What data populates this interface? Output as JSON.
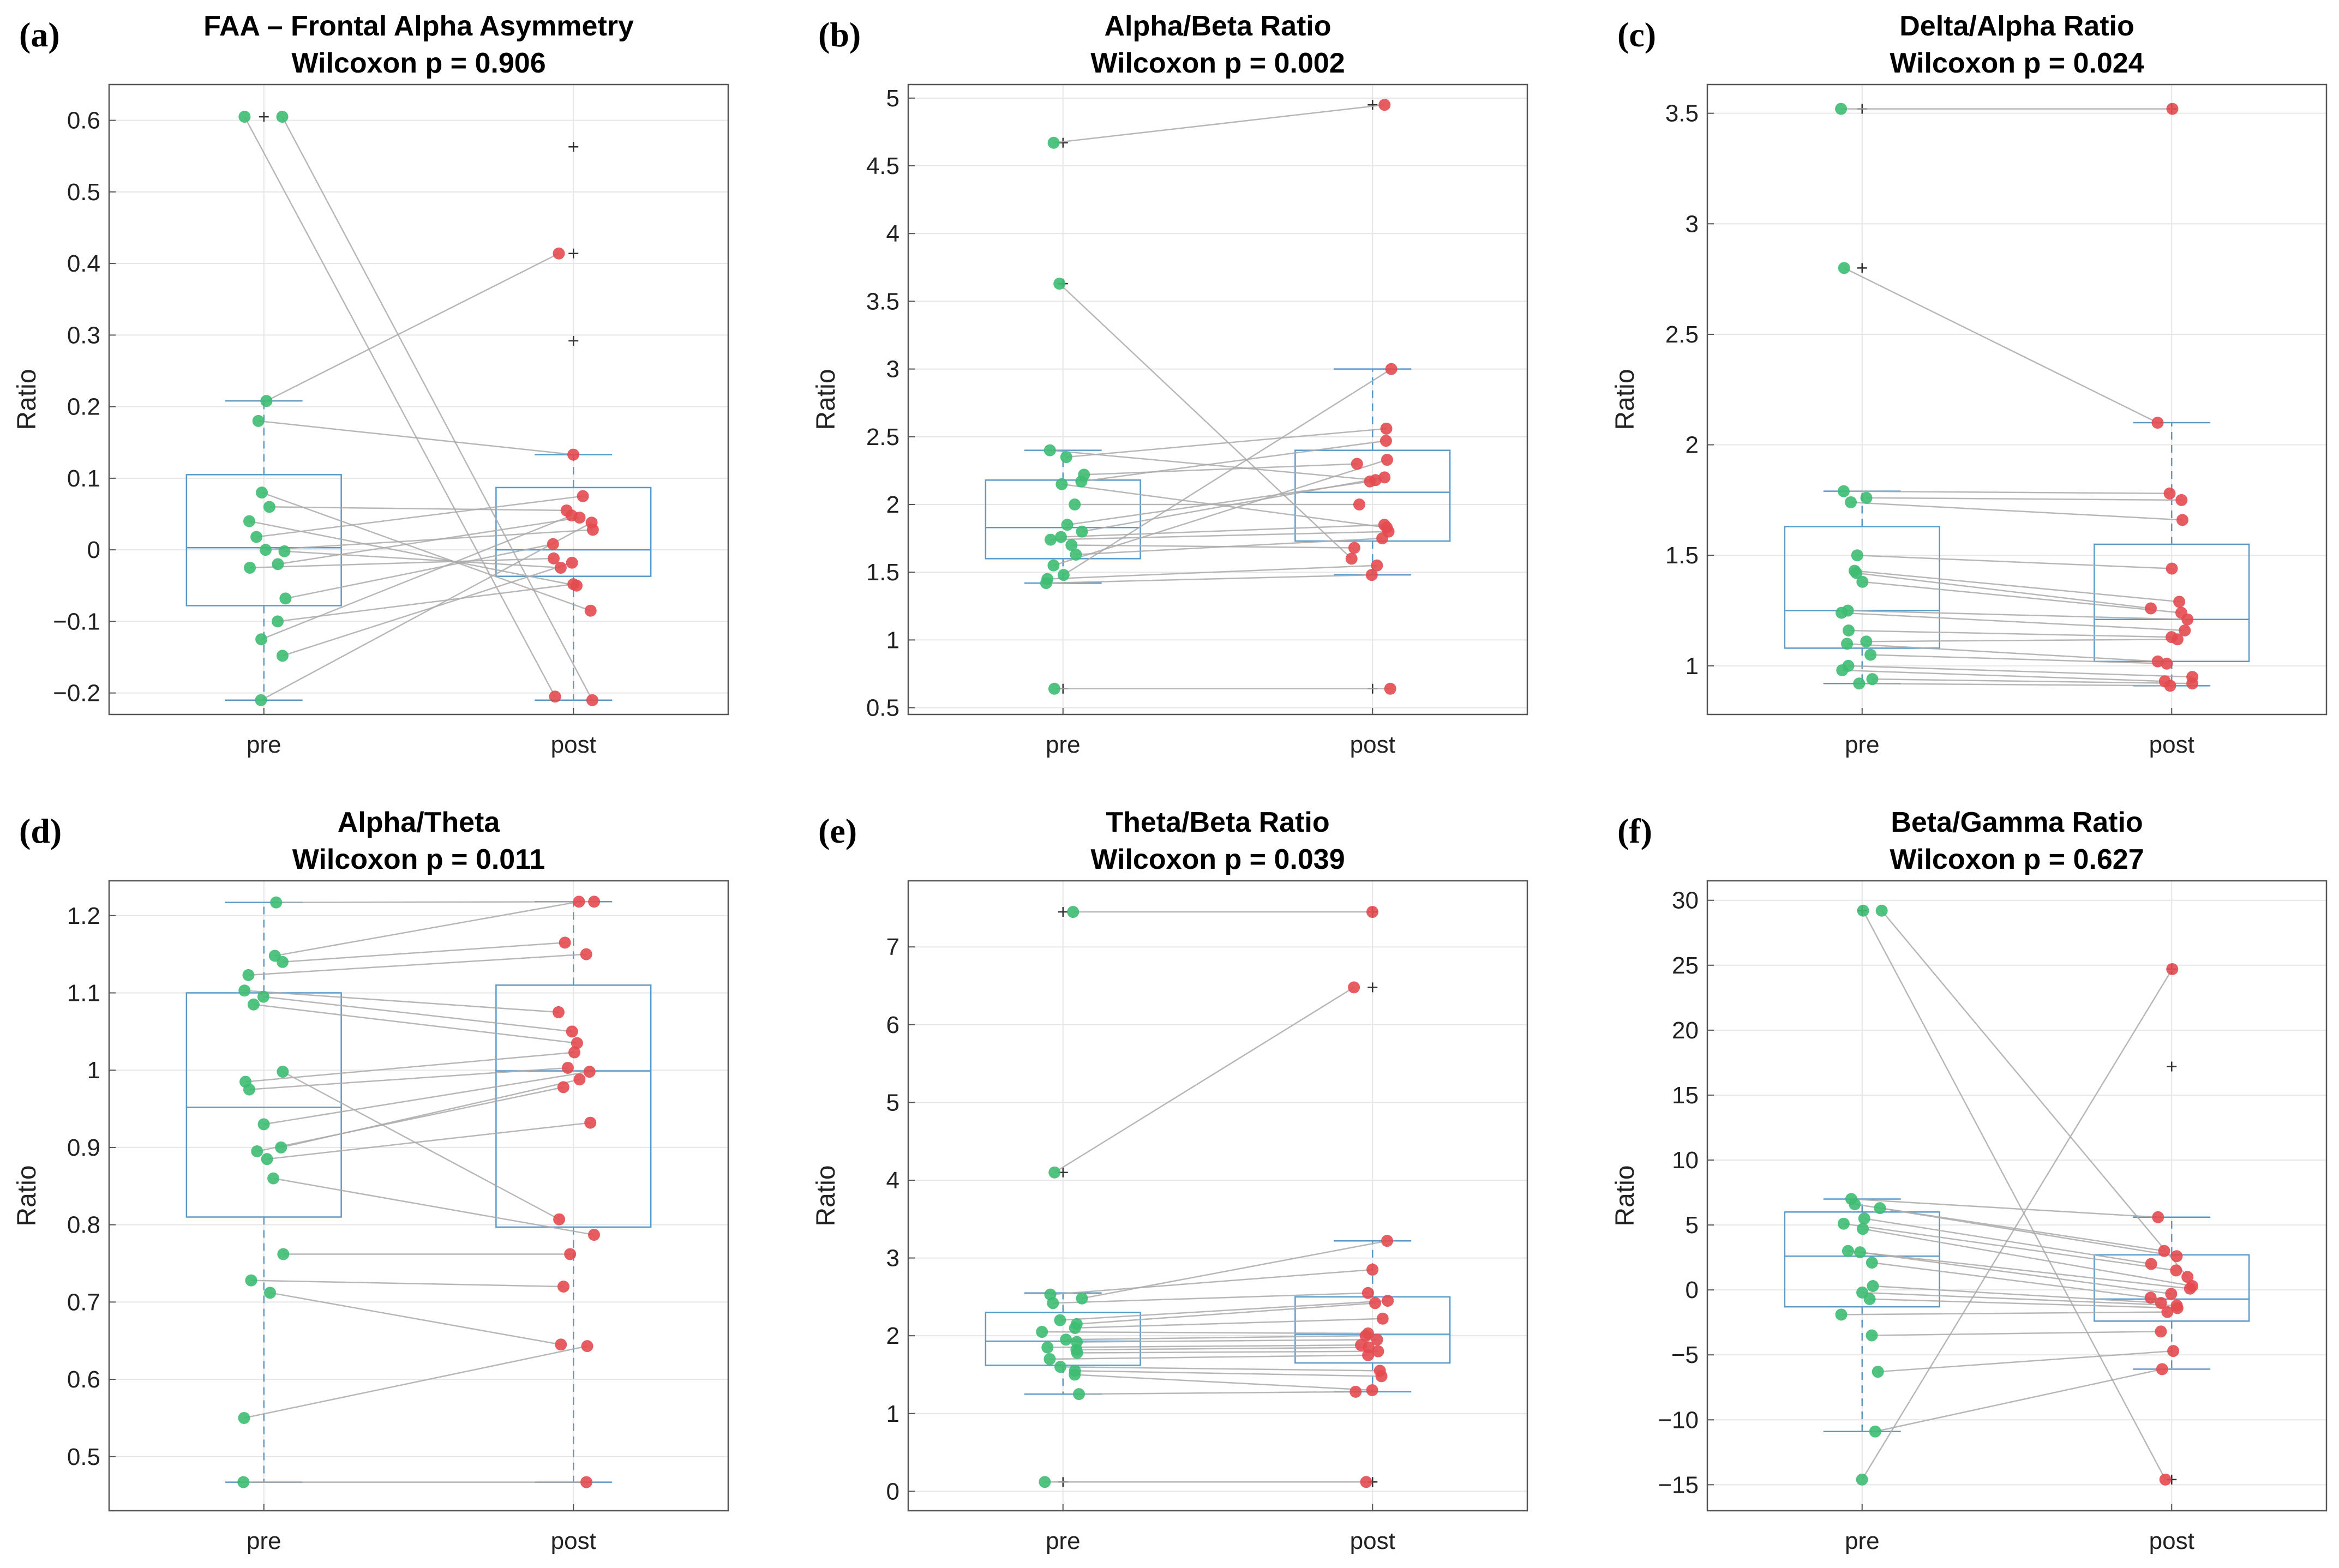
{
  "colors": {
    "pre": "#3dbd72",
    "post": "#e34a4f",
    "box": "#5a9ac9",
    "link": "#aaaaaa",
    "grid": "#e6e6e6",
    "axis": "#555555",
    "outlier": "#333333"
  },
  "chart_data": [
    {
      "panel": "(a)",
      "type": "box",
      "title": "FAA – Frontal Alpha Asymmetry",
      "subtitle": "Wilcoxon p = 0.906",
      "ylabel": "Ratio",
      "categories": [
        "pre",
        "post"
      ],
      "ylim": [
        -0.23,
        0.65
      ],
      "yticks": [
        -0.2,
        -0.1,
        0,
        0.1,
        0.2,
        0.3,
        0.4,
        0.5,
        0.6
      ],
      "yticklabels": [
        "−0.2",
        "−0.1",
        "0",
        "0.1",
        "0.2",
        "0.3",
        "0.4",
        "0.5",
        "0.6"
      ],
      "box": {
        "pre": {
          "q1": -0.078,
          "median": 0.003,
          "q3": 0.105,
          "whisker_low": -0.21,
          "whisker_high": 0.208,
          "outliers": [
            0.605
          ]
        },
        "post": {
          "q1": -0.037,
          "median": 0.0,
          "q3": 0.087,
          "whisker_low": -0.21,
          "whisker_high": 0.133,
          "outliers": [
            0.563,
            0.414,
            0.292
          ]
        }
      },
      "series": [
        {
          "name": "pre",
          "values": [
            0.605,
            0.605,
            0.208,
            0.18,
            0.08,
            0.06,
            0.04,
            0.018,
            0.0,
            -0.002,
            -0.02,
            -0.025,
            -0.068,
            -0.1,
            -0.125,
            -0.148,
            -0.21
          ]
        },
        {
          "name": "post",
          "values": [
            -0.21,
            -0.205,
            0.414,
            0.133,
            -0.085,
            0.055,
            -0.05,
            0.075,
            0.028,
            -0.025,
            0.045,
            -0.012,
            0.008,
            -0.048,
            0.048,
            -0.018,
            0.038
          ]
        }
      ]
    },
    {
      "panel": "(b)",
      "type": "box",
      "title": "Alpha/Beta Ratio",
      "subtitle": "Wilcoxon p = 0.002",
      "ylabel": "Ratio",
      "categories": [
        "pre",
        "post"
      ],
      "ylim": [
        0.45,
        5.1
      ],
      "yticks": [
        0.5,
        1,
        1.5,
        2,
        2.5,
        3,
        3.5,
        4,
        4.5,
        5
      ],
      "yticklabels": [
        "0.5",
        "1",
        "1.5",
        "2",
        "2.5",
        "3",
        "3.5",
        "4",
        "4.5",
        "5"
      ],
      "box": {
        "pre": {
          "q1": 1.6,
          "median": 1.83,
          "q3": 2.18,
          "whisker_low": 1.42,
          "whisker_high": 2.4,
          "outliers": [
            4.67,
            3.63,
            0.64
          ]
        },
        "post": {
          "q1": 1.73,
          "median": 2.09,
          "q3": 2.4,
          "whisker_low": 1.48,
          "whisker_high": 3.0,
          "outliers": [
            4.95,
            0.64
          ]
        }
      },
      "series": [
        {
          "name": "pre",
          "values": [
            4.67,
            3.63,
            2.4,
            2.35,
            2.22,
            2.17,
            2.15,
            2.0,
            1.85,
            1.8,
            1.76,
            1.74,
            1.7,
            1.63,
            1.55,
            1.48,
            1.45,
            1.42,
            0.64
          ]
        },
        {
          "name": "post",
          "values": [
            4.95,
            1.6,
            2.18,
            2.56,
            2.3,
            2.47,
            1.83,
            2.0,
            2.17,
            2.2,
            1.85,
            1.8,
            1.68,
            1.75,
            2.33,
            3.0,
            1.55,
            1.48,
            0.64
          ]
        }
      ]
    },
    {
      "panel": "(c)",
      "type": "box",
      "title": "Delta/Alpha Ratio",
      "subtitle": "Wilcoxon p = 0.024",
      "ylabel": "Ratio",
      "categories": [
        "pre",
        "post"
      ],
      "ylim": [
        0.78,
        3.63
      ],
      "yticks": [
        1,
        1.5,
        2,
        2.5,
        3,
        3.5
      ],
      "yticklabels": [
        "1",
        "1.5",
        "2",
        "2.5",
        "3",
        "3.5"
      ],
      "box": {
        "pre": {
          "q1": 1.08,
          "median": 1.25,
          "q3": 1.63,
          "whisker_low": 0.92,
          "whisker_high": 1.79,
          "outliers": [
            3.52,
            2.8
          ]
        },
        "post": {
          "q1": 1.02,
          "median": 1.21,
          "q3": 1.55,
          "whisker_low": 0.91,
          "whisker_high": 2.1,
          "outliers": [
            3.52
          ]
        }
      },
      "series": [
        {
          "name": "pre",
          "values": [
            3.52,
            2.8,
            1.79,
            1.76,
            1.74,
            1.5,
            1.43,
            1.42,
            1.38,
            1.25,
            1.24,
            1.16,
            1.11,
            1.1,
            1.05,
            1.0,
            0.98,
            0.94,
            0.92
          ]
        },
        {
          "name": "post",
          "values": [
            3.52,
            2.1,
            1.78,
            1.75,
            1.66,
            1.44,
            1.29,
            1.26,
            1.24,
            1.21,
            1.16,
            1.13,
            1.12,
            1.02,
            1.01,
            0.95,
            0.93,
            0.92,
            0.91
          ]
        }
      ]
    },
    {
      "panel": "(d)",
      "type": "box",
      "title": "Alpha/Theta",
      "subtitle": "Wilcoxon p = 0.011",
      "ylabel": "Ratio",
      "categories": [
        "pre",
        "post"
      ],
      "ylim": [
        0.43,
        1.245
      ],
      "yticks": [
        0.5,
        0.6,
        0.7,
        0.8,
        0.9,
        1,
        1.1,
        1.2
      ],
      "yticklabels": [
        "0.5",
        "0.6",
        "0.7",
        "0.8",
        "0.9",
        "1",
        "1.1",
        "1.2"
      ],
      "box": {
        "pre": {
          "q1": 0.81,
          "median": 0.952,
          "q3": 1.1,
          "whisker_low": 0.467,
          "whisker_high": 1.217,
          "outliers": []
        },
        "post": {
          "q1": 0.797,
          "median": 0.999,
          "q3": 1.11,
          "whisker_low": 0.467,
          "whisker_high": 1.218,
          "outliers": []
        }
      },
      "series": [
        {
          "name": "pre",
          "values": [
            1.217,
            1.148,
            1.14,
            1.123,
            1.103,
            1.095,
            1.085,
            0.998,
            0.985,
            0.975,
            0.93,
            0.9,
            0.895,
            0.885,
            0.86,
            0.762,
            0.728,
            0.712,
            0.55,
            0.467
          ]
        },
        {
          "name": "post",
          "values": [
            1.218,
            1.218,
            1.165,
            1.15,
            1.075,
            1.05,
            1.035,
            0.807,
            1.023,
            1.003,
            0.998,
            0.988,
            0.978,
            0.932,
            0.787,
            0.762,
            0.72,
            0.645,
            0.643,
            0.467
          ]
        }
      ]
    },
    {
      "panel": "(e)",
      "type": "box",
      "title": "Theta/Beta Ratio",
      "subtitle": "Wilcoxon p = 0.039",
      "ylabel": "Ratio",
      "categories": [
        "pre",
        "post"
      ],
      "ylim": [
        -0.25,
        7.85
      ],
      "yticks": [
        0,
        1,
        2,
        3,
        4,
        5,
        6,
        7
      ],
      "yticklabels": [
        "0",
        "1",
        "2",
        "3",
        "4",
        "5",
        "6",
        "7"
      ],
      "box": {
        "pre": {
          "q1": 1.62,
          "median": 1.93,
          "q3": 2.3,
          "whisker_low": 1.25,
          "whisker_high": 2.55,
          "outliers": [
            7.45,
            4.1,
            0.12
          ]
        },
        "post": {
          "q1": 1.65,
          "median": 2.02,
          "q3": 2.5,
          "whisker_low": 1.28,
          "whisker_high": 3.22,
          "outliers": [
            7.45,
            6.48,
            0.12
          ]
        }
      },
      "series": [
        {
          "name": "pre",
          "values": [
            7.45,
            4.1,
            2.53,
            2.48,
            2.42,
            2.2,
            2.15,
            2.1,
            2.05,
            1.95,
            1.92,
            1.85,
            1.82,
            1.78,
            1.7,
            1.6,
            1.55,
            1.5,
            1.25,
            0.12
          ]
        },
        {
          "name": "post",
          "values": [
            7.45,
            6.48,
            2.85,
            3.22,
            2.55,
            2.45,
            2.42,
            2.22,
            2.03,
            2.0,
            1.95,
            1.88,
            1.85,
            1.8,
            1.75,
            1.55,
            1.48,
            1.3,
            1.28,
            0.12
          ]
        }
      ]
    },
    {
      "panel": "(f)",
      "type": "box",
      "title": "Beta/Gamma Ratio",
      "subtitle": "Wilcoxon p = 0.627",
      "ylabel": "Ratio",
      "categories": [
        "pre",
        "post"
      ],
      "ylim": [
        -17,
        31.5
      ],
      "yticks": [
        -15,
        -10,
        -5,
        0,
        5,
        10,
        15,
        20,
        25,
        30
      ],
      "yticklabels": [
        "−15",
        "−10",
        "−5",
        "0",
        "5",
        "10",
        "15",
        "20",
        "25",
        "30"
      ],
      "box": {
        "pre": {
          "q1": -1.3,
          "median": 2.6,
          "q3": 6.0,
          "whisker_low": -10.9,
          "whisker_high": 7.0,
          "outliers": [
            29.2
          ]
        },
        "post": {
          "q1": -2.4,
          "median": -0.7,
          "q3": 2.7,
          "whisker_low": -6.1,
          "whisker_high": 5.6,
          "outliers": [
            24.7,
            17.2,
            -14.6
          ]
        }
      },
      "series": [
        {
          "name": "pre",
          "values": [
            29.2,
            29.2,
            7.0,
            6.6,
            6.3,
            5.5,
            5.1,
            4.7,
            3.0,
            2.9,
            2.1,
            0.3,
            -0.2,
            -0.7,
            -1.9,
            -3.5,
            -6.3,
            -10.9,
            -14.6
          ]
        },
        {
          "name": "post",
          "values": [
            1.0,
            -14.6,
            5.6,
            3.0,
            2.6,
            2.0,
            1.5,
            0.3,
            0.1,
            -0.3,
            -0.6,
            -1.0,
            -1.2,
            -1.4,
            -1.7,
            -3.2,
            -4.7,
            -6.1,
            24.7
          ]
        }
      ]
    }
  ]
}
